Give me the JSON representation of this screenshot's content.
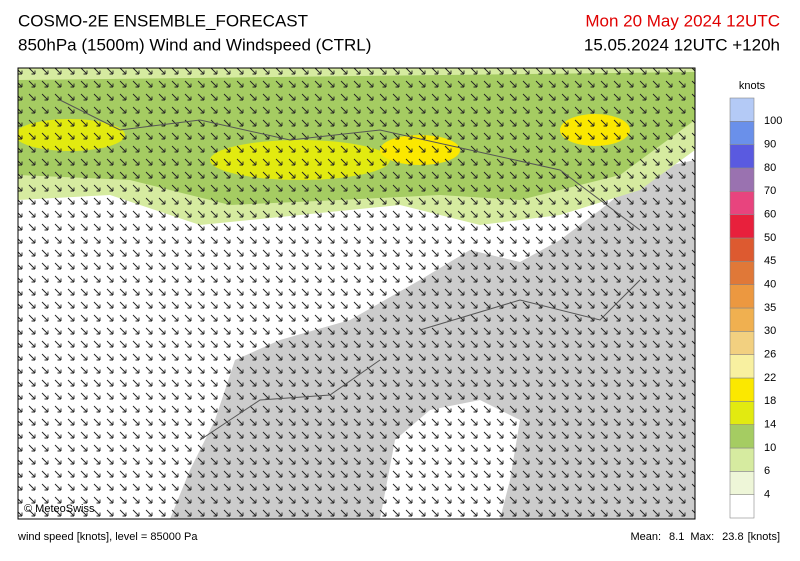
{
  "header": {
    "title": "COSMO-2E ENSEMBLE_FORECAST",
    "subtitle": "850hPa (1500m) Wind and Windspeed (CTRL)",
    "valid_time": "Mon 20 May 2024 12UTC",
    "run_time": "15.05.2024 12UTC +120h"
  },
  "map": {
    "credit": "© MeteoSwiss"
  },
  "legend": {
    "unit": "knots",
    "levels": [
      4,
      6,
      10,
      14,
      18,
      22,
      26,
      30,
      35,
      40,
      45,
      50,
      60,
      70,
      80,
      90,
      100
    ],
    "colors": [
      "#ffffff",
      "#eef6d8",
      "#d6eba0",
      "#a5cc62",
      "#e2ea10",
      "#fbe800",
      "#f8f0a0",
      "#f2d080",
      "#f0b050",
      "#ec9840",
      "#e07838",
      "#dd5a30",
      "#e8203c",
      "#e8447e",
      "#9a72b0",
      "#5a5ae0",
      "#6a90ea",
      "#b4caf6"
    ]
  },
  "footer": {
    "description": "wind speed [knots], level = 85000 Pa",
    "mean_label": "Mean:",
    "mean": 8.1,
    "max_label": "Max:",
    "max": 23.8,
    "unit": "[knots]"
  }
}
